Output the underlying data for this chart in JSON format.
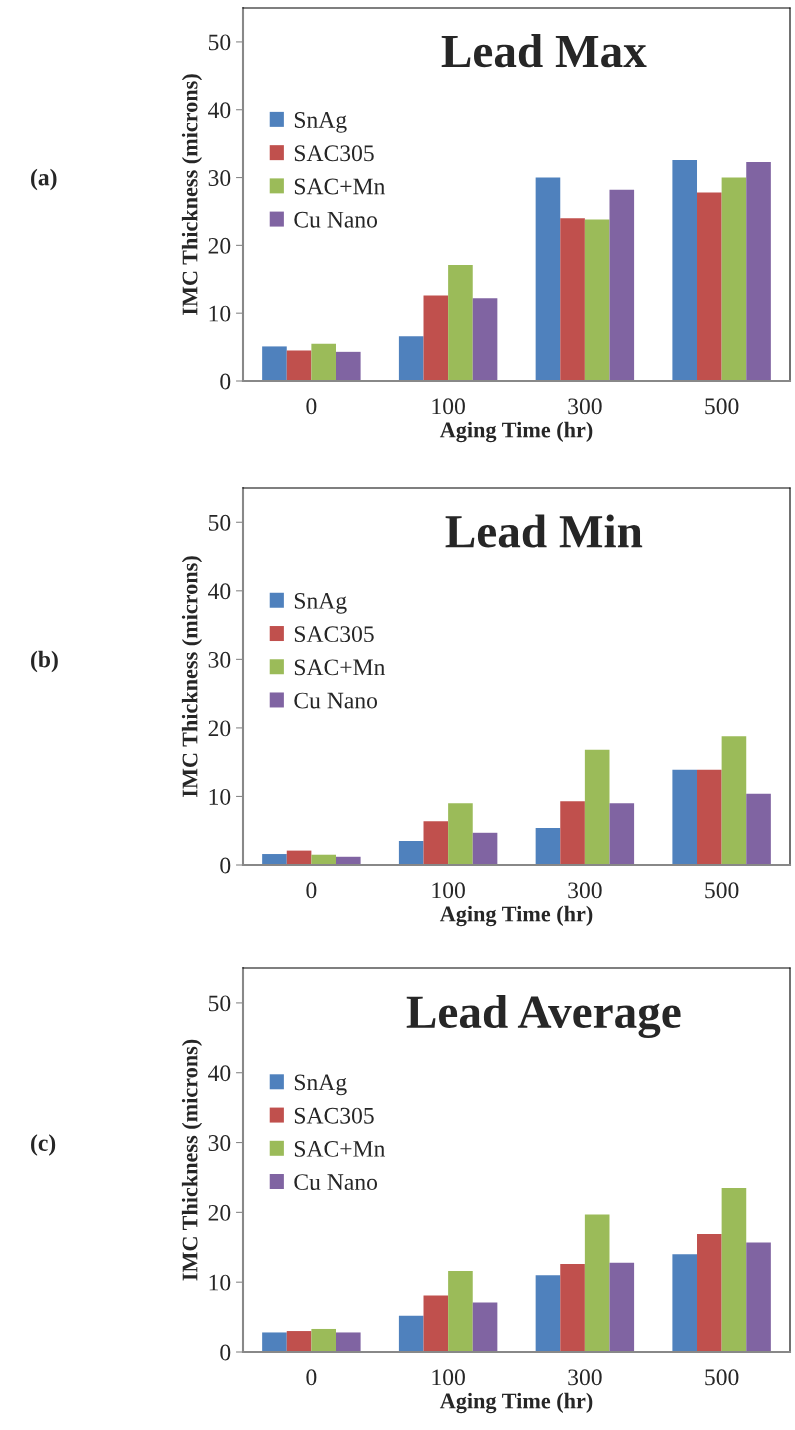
{
  "chart_data": [
    {
      "type": "bar",
      "title": "Lead Max",
      "xlabel": "Aging Time (hr)",
      "ylabel": "IMC Thickness (microns)",
      "annotations": [
        "(a)"
      ],
      "categories": [
        "0",
        "100",
        "300",
        "500"
      ],
      "series": [
        {
          "name": "SnAg",
          "color": "#4f81bd",
          "values": [
            5.1,
            6.6,
            30.0,
            32.6
          ]
        },
        {
          "name": "SAC305",
          "color": "#c0504d",
          "values": [
            4.5,
            12.6,
            24.0,
            27.8
          ]
        },
        {
          "name": "SAC+Mn",
          "color": "#9bbb59",
          "values": [
            5.5,
            17.1,
            23.8,
            30.0
          ]
        },
        {
          "name": "Cu Nano",
          "color": "#8064a2",
          "values": [
            4.3,
            12.2,
            28.2,
            32.3
          ]
        }
      ],
      "ylim": [
        0,
        55
      ],
      "yticks": [
        0,
        10,
        20,
        30,
        40,
        50
      ],
      "grid": false,
      "legend": "top left"
    },
    {
      "type": "bar",
      "title": "Lead Min",
      "xlabel": "Aging Time (hr)",
      "ylabel": "IMC Thickness (microns)",
      "annotations": [
        "(b)"
      ],
      "categories": [
        "0",
        "100",
        "300",
        "500"
      ],
      "series": [
        {
          "name": "SnAg",
          "color": "#4f81bd",
          "values": [
            1.6,
            3.5,
            5.4,
            13.9
          ]
        },
        {
          "name": "SAC305",
          "color": "#c0504d",
          "values": [
            2.1,
            6.4,
            9.3,
            13.9
          ]
        },
        {
          "name": "SAC+Mn",
          "color": "#9bbb59",
          "values": [
            1.5,
            9.0,
            16.8,
            18.8
          ]
        },
        {
          "name": "Cu Nano",
          "color": "#8064a2",
          "values": [
            1.2,
            4.7,
            9.0,
            10.4
          ]
        }
      ],
      "ylim": [
        0,
        55
      ],
      "yticks": [
        0,
        10,
        20,
        30,
        40,
        50
      ],
      "grid": false,
      "legend": "top left"
    },
    {
      "type": "bar",
      "title": "Lead Average",
      "xlabel": "Aging Time (hr)",
      "ylabel": "IMC Thickness (microns)",
      "annotations": [
        "(c)"
      ],
      "categories": [
        "0",
        "100",
        "300",
        "500"
      ],
      "series": [
        {
          "name": "SnAg",
          "color": "#4f81bd",
          "values": [
            2.8,
            5.2,
            11.0,
            14.0
          ]
        },
        {
          "name": "SAC305",
          "color": "#c0504d",
          "values": [
            3.0,
            8.1,
            12.6,
            16.9
          ]
        },
        {
          "name": "SAC+Mn",
          "color": "#9bbb59",
          "values": [
            3.3,
            11.6,
            19.7,
            23.5
          ]
        },
        {
          "name": "Cu Nano",
          "color": "#8064a2",
          "values": [
            2.8,
            7.1,
            12.8,
            15.7
          ]
        }
      ],
      "ylim": [
        0,
        55
      ],
      "yticks": [
        0,
        10,
        20,
        30,
        40,
        50
      ],
      "grid": false,
      "legend": "top left"
    }
  ]
}
